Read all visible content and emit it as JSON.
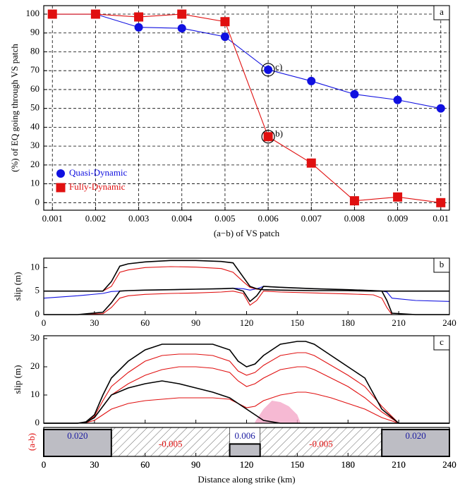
{
  "chart_data": [
    {
      "type": "line",
      "title": "a",
      "xlabel": "(a−b) of VS patch",
      "ylabel": "(%) of EQ going through VS patch",
      "x": [
        0.001,
        0.002,
        0.003,
        0.004,
        0.005,
        0.006,
        0.007,
        0.008,
        0.009,
        0.01
      ],
      "xlim": [
        0.0008,
        0.0102
      ],
      "ylim": [
        -4,
        104.5
      ],
      "xticks": [
        0.001,
        0.002,
        0.003,
        0.004,
        0.005,
        0.006,
        0.007,
        0.008,
        0.009,
        0.01
      ],
      "yticks": [
        0,
        10,
        20,
        30,
        40,
        50,
        60,
        70,
        80,
        90,
        100
      ],
      "grid": true,
      "legend": "lower left",
      "series": [
        {
          "name": "Quasi-Dynamic",
          "color": "#1010e0",
          "marker": "circle",
          "values": [
            100,
            100,
            93,
            92.5,
            88,
            70.5,
            64.5,
            57.5,
            54.5,
            50
          ]
        },
        {
          "name": "Fully-Dynamic",
          "color": "#e01010",
          "marker": "square",
          "values": [
            100,
            100,
            98.5,
            100,
            96,
            35,
            21,
            1,
            3,
            0
          ]
        }
      ],
      "annotations": [
        {
          "text": "c)",
          "x": 0.006,
          "y": 70.5
        },
        {
          "text": "b)",
          "x": 0.006,
          "y": 35
        }
      ]
    },
    {
      "type": "line",
      "title": "b",
      "ylabel": "slip (m)",
      "x": [
        0,
        20,
        35,
        40,
        45,
        50,
        60,
        75,
        90,
        105,
        112,
        118,
        122,
        126,
        130,
        140,
        160,
        180,
        195,
        200,
        203,
        206,
        220,
        240
      ],
      "xlim": [
        0,
        240
      ],
      "ylim": [
        0,
        12
      ],
      "xticks": [
        0,
        30,
        60,
        90,
        120,
        150,
        180,
        210,
        240
      ],
      "yticks": [
        0,
        5,
        10
      ],
      "series": [
        {
          "color": "#1010e0",
          "values": [
            3.5,
            4,
            4.5,
            4.9,
            5,
            5.1,
            5.2,
            5.3,
            5.4,
            5.5,
            5.6,
            5.5,
            5.2,
            5.5,
            6,
            5.8,
            5.5,
            5.3,
            5.1,
            5,
            4.8,
            3.5,
            3,
            2.8
          ]
        },
        {
          "color": "#e01010",
          "values": [
            5,
            5,
            5,
            6,
            9,
            9.5,
            10,
            10.2,
            10.1,
            9.8,
            9,
            7,
            5.8,
            5.4,
            5.3,
            5.2,
            5.1,
            5.1,
            5,
            5,
            5,
            5,
            5,
            5
          ]
        },
        {
          "color": "#e01010",
          "values": [
            0,
            0,
            0.2,
            1.5,
            3.5,
            4,
            4.3,
            4.5,
            4.6,
            4.8,
            5,
            4.5,
            2,
            3,
            5,
            4.8,
            4.6,
            4.4,
            4.2,
            3.5,
            1.5,
            0,
            0,
            0
          ]
        },
        {
          "color": "#000000",
          "values": [
            5,
            5,
            5,
            7,
            10.3,
            10.8,
            11.2,
            11.5,
            11.5,
            11.3,
            11,
            8,
            6,
            5.5,
            5.3,
            5.2,
            5.1,
            5.1,
            5,
            5,
            5,
            5,
            5,
            5
          ]
        },
        {
          "color": "#000000",
          "values": [
            0,
            0,
            0.5,
            2.5,
            5,
            5.1,
            5.2,
            5.3,
            5.4,
            5.5,
            5.6,
            5,
            2.8,
            4,
            6,
            5.8,
            5.5,
            5.3,
            5.1,
            5,
            3,
            0.3,
            0,
            0
          ]
        }
      ]
    },
    {
      "type": "line",
      "title": "c",
      "ylabel": "slip (m)",
      "x": [
        0,
        20,
        25,
        30,
        35,
        40,
        50,
        60,
        70,
        80,
        90,
        100,
        110,
        115,
        120,
        125,
        130,
        140,
        150,
        155,
        160,
        170,
        180,
        185,
        190,
        200,
        210,
        240
      ],
      "xlim": [
        0,
        240
      ],
      "ylim": [
        0,
        31
      ],
      "xticks": [
        0,
        30,
        60,
        90,
        120,
        150,
        180,
        210,
        240
      ],
      "xtick_labels": false,
      "yticks": [
        0,
        10,
        20,
        30
      ],
      "series": [
        {
          "color": "#e01010",
          "values": [
            0,
            0,
            0.3,
            2,
            6,
            10,
            14,
            17,
            19,
            20,
            20,
            19.5,
            18,
            15,
            13,
            14,
            16,
            19,
            20,
            20,
            19,
            16,
            13,
            11,
            9,
            4,
            0,
            0
          ]
        },
        {
          "color": "#e01010",
          "values": [
            0,
            0,
            0.2,
            1,
            3,
            5,
            7,
            8,
            8.5,
            9,
            9,
            9,
            8.5,
            7,
            5.5,
            6,
            8,
            10,
            11,
            11,
            10.5,
            9,
            7,
            6,
            5,
            2,
            0,
            0
          ]
        },
        {
          "color": "#e01010",
          "values": [
            0,
            0,
            0.2,
            2.5,
            8,
            13,
            18,
            22,
            24,
            24.5,
            24.5,
            24,
            22,
            18.5,
            17,
            18,
            20.5,
            24,
            25,
            25,
            24,
            20.5,
            17,
            15,
            13,
            6,
            0,
            0
          ]
        },
        {
          "color": "#000000",
          "values": [
            0,
            0,
            0.3,
            2,
            6,
            10,
            12.5,
            14,
            15,
            14,
            12.5,
            11,
            9,
            7,
            5,
            3,
            1,
            0,
            0,
            0,
            0,
            0,
            0,
            0,
            0,
            0,
            0,
            0
          ]
        },
        {
          "color": "#000000",
          "values": [
            0,
            0,
            0.5,
            3,
            10,
            16,
            22,
            26,
            28,
            28,
            28,
            28,
            26,
            22,
            20,
            21,
            24,
            28,
            29,
            29,
            28,
            24,
            20,
            18,
            16,
            5,
            0,
            0
          ]
        }
      ],
      "areas": [
        {
          "color": "#f4a8c8",
          "x": [
            125,
            130,
            135,
            140,
            145,
            150,
            152
          ],
          "values": [
            0.5,
            5,
            8,
            7.5,
            6,
            3,
            0
          ]
        }
      ]
    },
    {
      "type": "bar",
      "ylabel": "(a-b)",
      "ylabel_color": "#e01010",
      "xlabel": "Distance along strike (km)",
      "xlim": [
        0,
        240
      ],
      "ylim": [
        -0.006,
        0.022
      ],
      "xticks": [
        0,
        30,
        60,
        90,
        120,
        150,
        180,
        210,
        240
      ],
      "x_ranges": [
        [
          0,
          40
        ],
        [
          40,
          110
        ],
        [
          110,
          128
        ],
        [
          128,
          200
        ],
        [
          200,
          240
        ]
      ],
      "values": [
        0.02,
        -0.005,
        0.006,
        -0.005,
        0.02
      ],
      "value_labels": [
        "0.020",
        "-0.005",
        "0.006",
        "-0.005",
        "0.020"
      ]
    }
  ]
}
